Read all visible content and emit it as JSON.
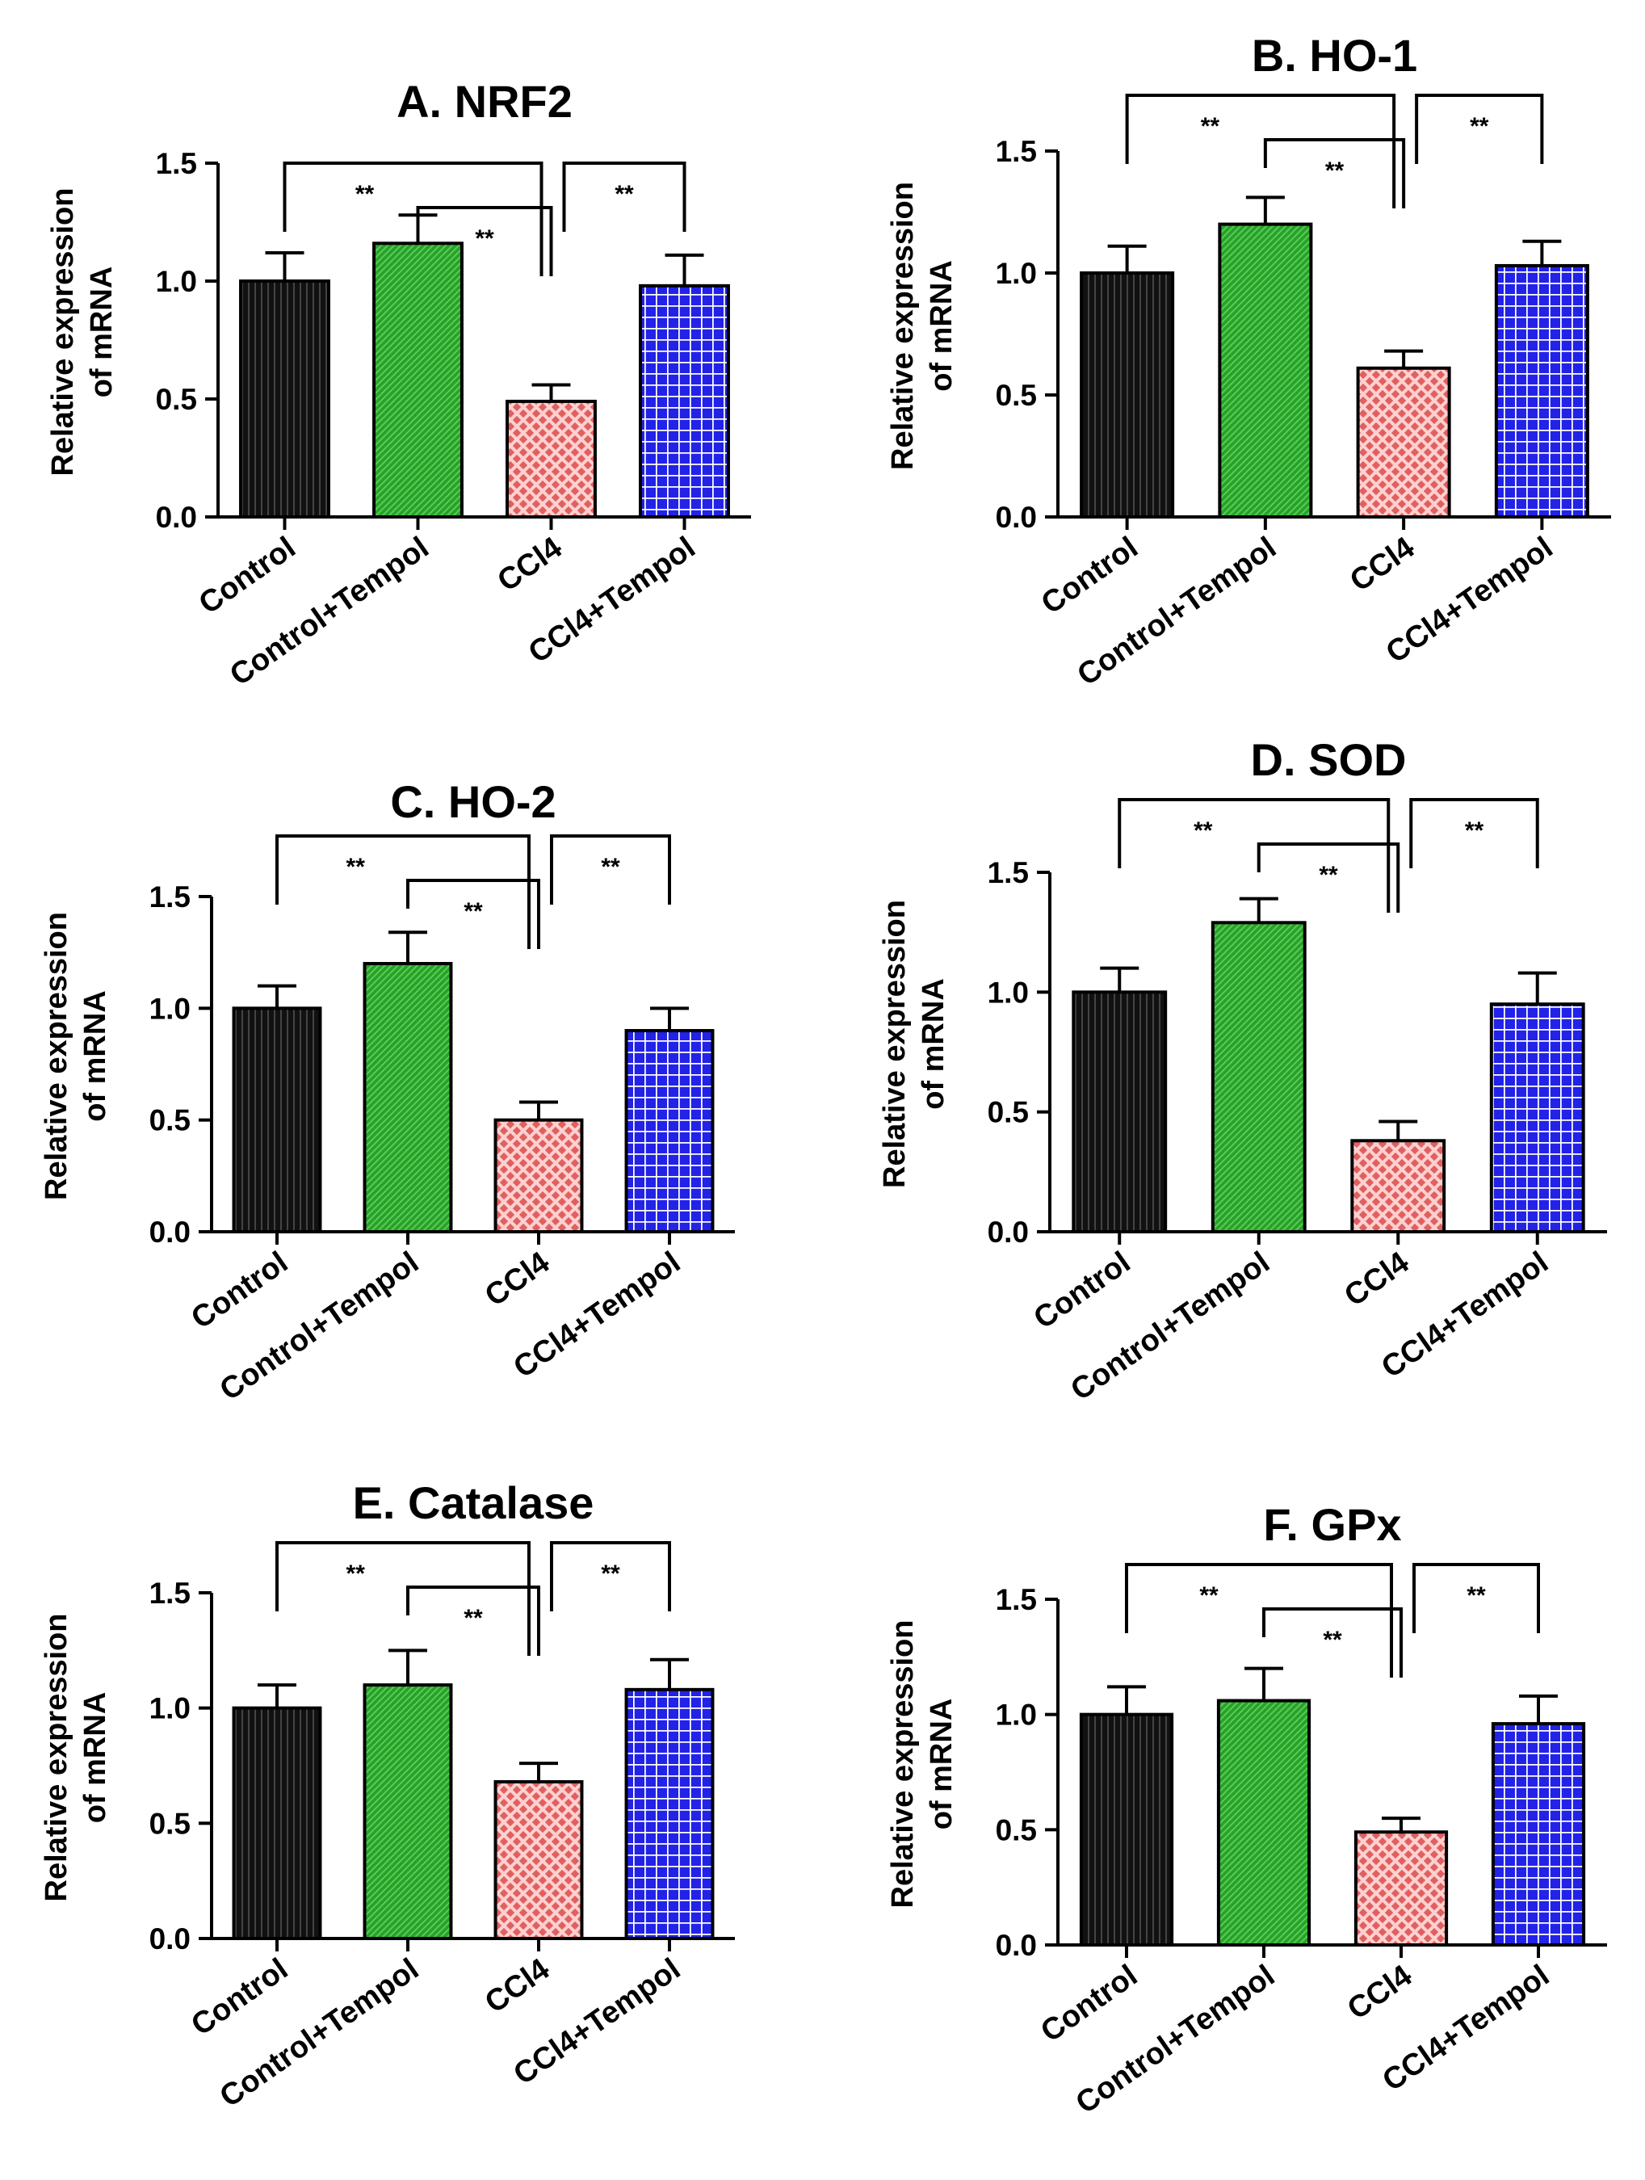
{
  "figure": {
    "categories": [
      "Control",
      "Control+Tempol",
      "CCl4",
      "CCl4+Tempol"
    ],
    "category_colors": [
      "#111111",
      "#26a326",
      "#e06060",
      "#2222e8"
    ],
    "category_patterns": [
      "vertical-lines",
      "diagonal-hatch",
      "crosshatch-dots",
      "grid"
    ]
  },
  "chart_data": [
    {
      "type": "bar",
      "title": "A. NRF2",
      "ylabel": [
        "Relative expression",
        "of mRNA"
      ],
      "xlabel": "",
      "ylim": [
        0,
        1.5
      ],
      "yticks": [
        "0.0",
        "0.5",
        "1.0",
        "1.5"
      ],
      "categories": [
        "Control",
        "Control+Tempol",
        "CCl4",
        "CCl4+Tempol"
      ],
      "values": [
        1.0,
        1.16,
        0.49,
        0.98
      ],
      "errors": [
        0.12,
        0.12,
        0.07,
        0.13
      ],
      "significance": [
        {
          "from": 0,
          "to": 2,
          "label": "**",
          "level": 1.5
        },
        {
          "from": 1,
          "to": 2,
          "label": "**",
          "level": 1.36
        },
        {
          "from": 2,
          "to": 3,
          "label": "**",
          "level": 1.5
        }
      ]
    },
    {
      "type": "bar",
      "title": "B. HO-1",
      "ylabel": [
        "Relative expression",
        "of mRNA"
      ],
      "xlabel": "",
      "ylim": [
        0,
        1.5
      ],
      "yticks": [
        "0.0",
        "0.5",
        "1.0",
        "1.5"
      ],
      "categories": [
        "Control",
        "Control+Tempol",
        "CCl4",
        "CCl4+Tempol"
      ],
      "values": [
        1.0,
        1.2,
        0.61,
        1.03
      ],
      "errors": [
        0.11,
        0.11,
        0.07,
        0.1
      ],
      "significance": [
        {
          "from": 0,
          "to": 2,
          "label": "**",
          "level": 1.5
        },
        {
          "from": 1,
          "to": 2,
          "label": "**",
          "level": 1.36
        },
        {
          "from": 2,
          "to": 3,
          "label": "**",
          "level": 1.5
        }
      ]
    },
    {
      "type": "bar",
      "title": "C. HO-2",
      "ylabel": [
        "Relative expression",
        "of mRNA"
      ],
      "xlabel": "",
      "ylim": [
        0,
        1.5
      ],
      "yticks": [
        "0.0",
        "0.5",
        "1.0",
        "1.5"
      ],
      "categories": [
        "Control",
        "Control+Tempol",
        "CCl4",
        "CCl4+Tempol"
      ],
      "values": [
        1.0,
        1.2,
        0.5,
        0.9
      ],
      "errors": [
        0.1,
        0.14,
        0.08,
        0.1
      ],
      "significance": [
        {
          "from": 0,
          "to": 2,
          "label": "**",
          "level": 1.5
        },
        {
          "from": 1,
          "to": 2,
          "label": "**",
          "level": 1.36
        },
        {
          "from": 2,
          "to": 3,
          "label": "**",
          "level": 1.5
        }
      ]
    },
    {
      "type": "bar",
      "title": "D. SOD",
      "ylabel": [
        "Relative expression",
        "of mRNA"
      ],
      "xlabel": "",
      "ylim": [
        0,
        1.5
      ],
      "yticks": [
        "0.0",
        "0.5",
        "1.0",
        "1.5"
      ],
      "categories": [
        "Control",
        "Control+Tempol",
        "CCl4",
        "CCl4+Tempol"
      ],
      "values": [
        1.0,
        1.29,
        0.38,
        0.95
      ],
      "errors": [
        0.1,
        0.1,
        0.08,
        0.13
      ],
      "significance": [
        {
          "from": 0,
          "to": 2,
          "label": "**",
          "level": 1.5
        },
        {
          "from": 1,
          "to": 2,
          "label": "**",
          "level": 1.36
        },
        {
          "from": 2,
          "to": 3,
          "label": "**",
          "level": 1.5
        }
      ]
    },
    {
      "type": "bar",
      "title": "E. Catalase",
      "ylabel": [
        "Relative expression",
        "of mRNA"
      ],
      "xlabel": "",
      "ylim": [
        0,
        1.5
      ],
      "yticks": [
        "0.0",
        "0.5",
        "1.0",
        "1.5"
      ],
      "categories": [
        "Control",
        "Control+Tempol",
        "CCl4",
        "CCl4+Tempol"
      ],
      "values": [
        1.0,
        1.1,
        0.68,
        1.08
      ],
      "errors": [
        0.1,
        0.15,
        0.08,
        0.13
      ],
      "significance": [
        {
          "from": 0,
          "to": 2,
          "label": "**",
          "level": 1.5
        },
        {
          "from": 1,
          "to": 2,
          "label": "**",
          "level": 1.36
        },
        {
          "from": 2,
          "to": 3,
          "label": "**",
          "level": 1.5
        }
      ]
    },
    {
      "type": "bar",
      "title": "F. GPx",
      "ylabel": [
        "Relative expression",
        "of mRNA"
      ],
      "xlabel": "",
      "ylim": [
        0,
        1.5
      ],
      "yticks": [
        "0.0",
        "0.5",
        "1.0",
        "1.5"
      ],
      "categories": [
        "Control",
        "Control+Tempol",
        "CCl4",
        "CCl4+Tempol"
      ],
      "values": [
        1.0,
        1.06,
        0.49,
        0.96
      ],
      "errors": [
        0.12,
        0.14,
        0.06,
        0.12
      ],
      "significance": [
        {
          "from": 0,
          "to": 2,
          "label": "**",
          "level": 1.5
        },
        {
          "from": 1,
          "to": 2,
          "label": "**",
          "level": 1.36
        },
        {
          "from": 2,
          "to": 3,
          "label": "**",
          "level": 1.5
        }
      ]
    }
  ]
}
